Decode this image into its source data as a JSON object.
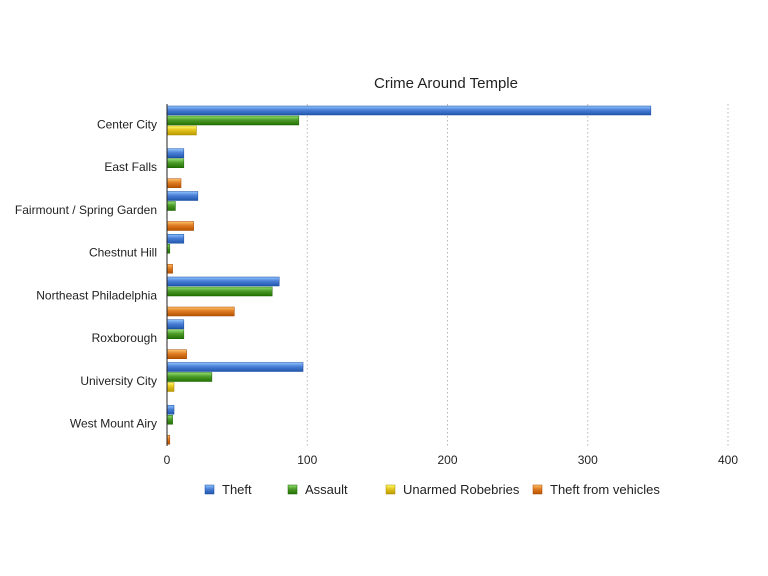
{
  "chart_data": {
    "type": "bar",
    "orientation": "horizontal",
    "title": "Crime Around Temple",
    "xlabel": "",
    "ylabel": "",
    "xlim": [
      0,
      400
    ],
    "xticks": [
      0,
      100,
      200,
      300,
      400
    ],
    "grid": "vertical dotted",
    "legend_position": "bottom",
    "categories": [
      "Center City",
      "East Falls",
      "Fairmount / Spring Garden",
      "Chestnut Hill",
      "Northeast Philadelphia",
      "Roxborough",
      "University City",
      "West Mount Airy"
    ],
    "series": [
      {
        "name": "Theft",
        "color": "#4a7fd6",
        "values": [
          345,
          12,
          22,
          12,
          80,
          12,
          97,
          5
        ]
      },
      {
        "name": "Assault",
        "color": "#4c9a2a",
        "values": [
          94,
          12,
          6,
          2,
          75,
          12,
          32,
          4
        ]
      },
      {
        "name": "Unarmed Robebries",
        "color": "#e3c31f",
        "values": [
          21,
          0,
          0,
          0,
          0,
          0,
          5,
          0
        ]
      },
      {
        "name": "Theft from vehicles",
        "color": "#de7b22",
        "values": [
          0,
          10,
          19,
          4,
          48,
          14,
          0,
          2
        ]
      }
    ]
  }
}
